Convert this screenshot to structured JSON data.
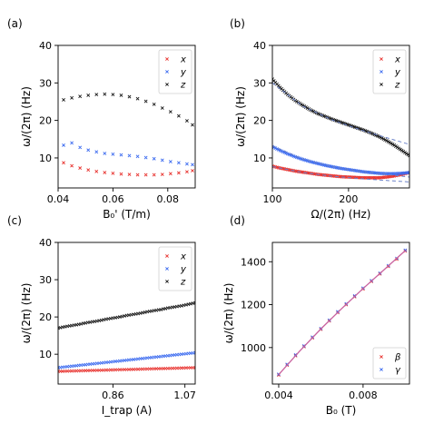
{
  "colors": {
    "x": "#e8322e",
    "y": "#3d6cf0",
    "z": "#1a1a1a",
    "dashed": "#6b82c9",
    "fit": "#c9629e"
  },
  "chart_data": [
    {
      "id": "a",
      "panel_label": "(a)",
      "type": "scatter",
      "xlabel": "B₀' (T/m)",
      "ylabel": "ω/(2π) (Hz)",
      "xlim": [
        0.04,
        0.09
      ],
      "ylim": [
        2,
        40
      ],
      "xticks": [
        0.04,
        0.06,
        0.08
      ],
      "xtick_labels": [
        "0.04",
        "0.06",
        "0.08"
      ],
      "yticks": [
        10,
        20,
        30,
        40
      ],
      "ytick_labels": [
        "10",
        "20",
        "30",
        "40"
      ],
      "legend": "top-right",
      "series": [
        {
          "name": "x",
          "color_key": "x",
          "marker": "x",
          "x": [
            0.042,
            0.045,
            0.048,
            0.051,
            0.054,
            0.057,
            0.06,
            0.063,
            0.066,
            0.069,
            0.072,
            0.075,
            0.078,
            0.081,
            0.084,
            0.087,
            0.089
          ],
          "y": [
            8.7,
            7.9,
            7.3,
            6.8,
            6.4,
            6.1,
            5.9,
            5.7,
            5.6,
            5.5,
            5.5,
            5.5,
            5.6,
            5.8,
            6.0,
            6.3,
            6.6
          ]
        },
        {
          "name": "y",
          "color_key": "y",
          "marker": "x",
          "x": [
            0.042,
            0.045,
            0.048,
            0.051,
            0.054,
            0.057,
            0.06,
            0.063,
            0.066,
            0.069,
            0.072,
            0.075,
            0.078,
            0.081,
            0.084,
            0.087,
            0.089
          ],
          "y": [
            13.4,
            14.0,
            12.8,
            12.1,
            11.6,
            11.2,
            11.0,
            10.8,
            10.6,
            10.4,
            10.1,
            9.8,
            9.4,
            9.0,
            8.7,
            8.4,
            8.2
          ]
        },
        {
          "name": "z",
          "color_key": "z",
          "marker": "x",
          "x": [
            0.042,
            0.045,
            0.048,
            0.051,
            0.054,
            0.057,
            0.06,
            0.063,
            0.066,
            0.069,
            0.072,
            0.075,
            0.078,
            0.081,
            0.084,
            0.087,
            0.089
          ],
          "y": [
            25.5,
            26.0,
            26.4,
            26.7,
            26.9,
            27.0,
            26.9,
            26.7,
            26.3,
            25.8,
            25.1,
            24.3,
            23.3,
            22.3,
            21.2,
            19.9,
            18.8
          ]
        }
      ]
    },
    {
      "id": "b",
      "panel_label": "(b)",
      "type": "scatter",
      "xlabel": "Ω/(2π) (Hz)",
      "ylabel": "ω/(2π) (Hz)",
      "xlim": [
        100,
        280
      ],
      "ylim": [
        2,
        40
      ],
      "xticks": [
        100,
        200
      ],
      "xtick_labels": [
        "100",
        "200"
      ],
      "yticks": [
        10,
        20,
        30,
        40
      ],
      "ytick_labels": [
        "10",
        "20",
        "30",
        "40"
      ],
      "legend": "top-right",
      "series": [
        {
          "name": "x",
          "color_key": "x",
          "marker": "x",
          "x": [
            100,
            110,
            120,
            130,
            140,
            150,
            160,
            170,
            180,
            190,
            200,
            210,
            220,
            230,
            240,
            250,
            260,
            270,
            280
          ],
          "y": [
            7.8,
            7.3,
            6.9,
            6.5,
            6.2,
            5.9,
            5.6,
            5.4,
            5.2,
            5.0,
            4.9,
            4.8,
            4.7,
            4.7,
            4.7,
            4.9,
            5.2,
            5.6,
            6.1
          ]
        },
        {
          "name": "y",
          "color_key": "y",
          "marker": "x",
          "x": [
            100,
            110,
            120,
            130,
            140,
            150,
            160,
            170,
            180,
            190,
            200,
            210,
            220,
            230,
            240,
            250,
            260,
            270,
            280
          ],
          "y": [
            13.0,
            12.0,
            11.1,
            10.3,
            9.6,
            9.0,
            8.5,
            8.0,
            7.6,
            7.2,
            6.9,
            6.6,
            6.3,
            6.1,
            5.9,
            5.8,
            5.8,
            5.9,
            6.1
          ]
        },
        {
          "name": "z",
          "color_key": "z",
          "marker": "x",
          "x": [
            100,
            110,
            120,
            130,
            140,
            150,
            160,
            170,
            180,
            190,
            200,
            210,
            220,
            230,
            240,
            250,
            260,
            270,
            280
          ],
          "y": [
            31.0,
            28.8,
            26.9,
            25.3,
            24.0,
            22.8,
            21.8,
            21.0,
            20.2,
            19.5,
            18.8,
            18.1,
            17.4,
            16.6,
            15.7,
            14.6,
            13.4,
            12.0,
            10.6
          ]
        },
        {
          "name": "",
          "color_key": "dashed",
          "style": "dashed",
          "x": [
            100,
            140,
            180,
            220,
            250,
            280
          ],
          "y": [
            30.0,
            23.8,
            20.0,
            17.2,
            15.4,
            13.6
          ]
        },
        {
          "name": "",
          "color_key": "dashed",
          "style": "dashed",
          "x": [
            100,
            140,
            180,
            220,
            250,
            280
          ],
          "y": [
            13.2,
            9.7,
            7.6,
            6.3,
            5.6,
            4.9
          ]
        },
        {
          "name": "",
          "color_key": "dashed",
          "style": "dashed",
          "x": [
            100,
            140,
            180,
            220,
            250,
            280
          ],
          "y": [
            7.7,
            6.1,
            5.1,
            4.4,
            4.0,
            3.6
          ]
        }
      ]
    },
    {
      "id": "c",
      "panel_label": "(c)",
      "type": "scatter",
      "xlabel": "I_trap (A)",
      "ylabel": "ω/(2π) (Hz)",
      "xlim": [
        0.7,
        1.1
      ],
      "ylim": [
        2,
        40
      ],
      "xticks": [
        0.86,
        1.07
      ],
      "xtick_labels": [
        "0.86",
        "1.07"
      ],
      "yticks": [
        10,
        20,
        30,
        40
      ],
      "ytick_labels": [
        "10",
        "20",
        "30",
        "40"
      ],
      "legend": "top-right",
      "series": [
        {
          "name": "x",
          "color_key": "x",
          "marker": "x",
          "x": [
            0.7,
            0.72,
            0.74,
            0.76,
            0.78,
            0.8,
            0.82,
            0.84,
            0.86,
            0.88,
            0.9,
            0.92,
            0.94,
            0.96,
            0.98,
            1.0,
            1.02,
            1.04,
            1.06,
            1.08,
            1.1
          ],
          "y": [
            5.4,
            5.45,
            5.5,
            5.55,
            5.6,
            5.65,
            5.7,
            5.75,
            5.8,
            5.85,
            5.9,
            5.95,
            6.0,
            6.05,
            6.1,
            6.15,
            6.2,
            6.25,
            6.3,
            6.35,
            6.4
          ]
        },
        {
          "name": "y",
          "color_key": "y",
          "marker": "x",
          "x": [
            0.7,
            0.72,
            0.74,
            0.76,
            0.78,
            0.8,
            0.82,
            0.84,
            0.86,
            0.88,
            0.9,
            0.92,
            0.94,
            0.96,
            0.98,
            1.0,
            1.02,
            1.04,
            1.06,
            1.08,
            1.1
          ],
          "y": [
            6.4,
            6.6,
            6.8,
            7.0,
            7.2,
            7.4,
            7.6,
            7.8,
            8.0,
            8.2,
            8.4,
            8.6,
            8.8,
            9.0,
            9.2,
            9.4,
            9.6,
            9.8,
            10.0,
            10.2,
            10.4
          ]
        },
        {
          "name": "z",
          "color_key": "z",
          "marker": "x",
          "x": [
            0.7,
            0.72,
            0.74,
            0.76,
            0.78,
            0.8,
            0.82,
            0.84,
            0.86,
            0.88,
            0.9,
            0.92,
            0.94,
            0.96,
            0.98,
            1.0,
            1.02,
            1.04,
            1.06,
            1.08,
            1.1
          ],
          "y": [
            17.0,
            17.4,
            17.7,
            18.0,
            18.4,
            18.7,
            19.0,
            19.4,
            19.7,
            20.0,
            20.4,
            20.7,
            21.0,
            21.4,
            21.7,
            22.0,
            22.4,
            22.7,
            23.0,
            23.4,
            23.8
          ]
        }
      ]
    },
    {
      "id": "d",
      "panel_label": "(d)",
      "type": "scatter",
      "xlabel": "B₀ (T)",
      "ylabel": "ω/(2π) (Hz)",
      "xlim": [
        0.0037,
        0.0102
      ],
      "ylim": [
        830,
        1490
      ],
      "xticks": [
        0.004,
        0.008
      ],
      "xtick_labels": [
        "0.004",
        "0.008"
      ],
      "yticks": [
        1000,
        1200,
        1400
      ],
      "ytick_labels": [
        "1000",
        "1200",
        "1400"
      ],
      "legend": "bottom-right",
      "series": [
        {
          "name": "β",
          "color_key": "x",
          "marker": "x",
          "x": [
            0.004,
            0.0044,
            0.0048,
            0.0052,
            0.0056,
            0.006,
            0.0064,
            0.0068,
            0.0072,
            0.0076,
            0.008,
            0.0084,
            0.0088,
            0.0092,
            0.0096,
            0.01
          ],
          "y": [
            872,
            918,
            962,
            1004,
            1045,
            1085,
            1124,
            1163,
            1200,
            1237,
            1273,
            1308,
            1343,
            1378,
            1412,
            1450
          ]
        },
        {
          "name": "γ",
          "color_key": "y",
          "marker": "x",
          "x": [
            0.004,
            0.0044,
            0.0048,
            0.0052,
            0.0056,
            0.006,
            0.0064,
            0.0068,
            0.0072,
            0.0076,
            0.008,
            0.0084,
            0.0088,
            0.0092,
            0.0096,
            0.01
          ],
          "y": [
            876,
            922,
            966,
            1008,
            1049,
            1089,
            1128,
            1167,
            1204,
            1241,
            1277,
            1312,
            1347,
            1382,
            1416,
            1454
          ]
        },
        {
          "name": "",
          "color_key": "fit",
          "style": "solid",
          "x": [
            0.004,
            0.005,
            0.006,
            0.007,
            0.008,
            0.009,
            0.01
          ],
          "y": [
            874,
            984,
            1087,
            1183,
            1275,
            1363,
            1452
          ]
        }
      ]
    }
  ]
}
